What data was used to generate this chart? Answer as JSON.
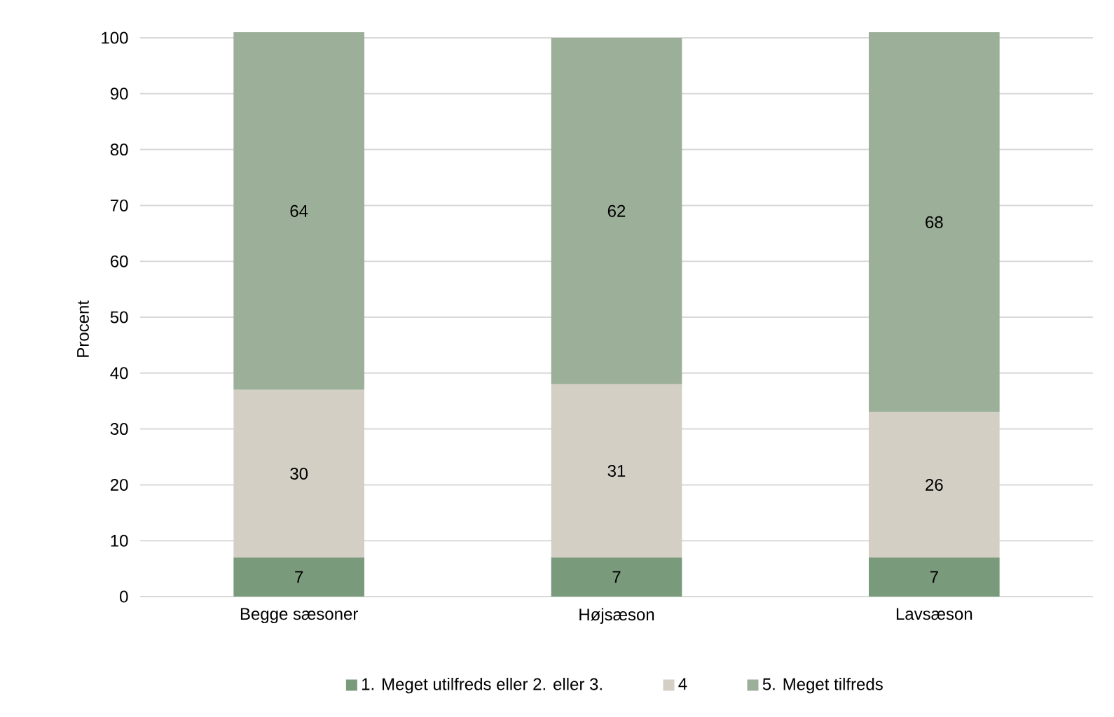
{
  "chart_data": {
    "type": "bar",
    "stacked": true,
    "ylabel": "Procent",
    "categories": [
      "Begge sæsoner",
      "Højsæson",
      "Lavsæson"
    ],
    "series": [
      {
        "name": "1. Meget utilfreds eller 2. eller 3.",
        "color": "#7a9a7c",
        "values": [
          7,
          7,
          7
        ]
      },
      {
        "name": "4",
        "color": "#d3cfc4",
        "values": [
          30,
          31,
          26
        ]
      },
      {
        "name": "5. Meget tilfreds",
        "color": "#9caf98",
        "values": [
          64,
          62,
          68
        ]
      }
    ],
    "ylim": [
      0,
      101
    ],
    "yticks": [
      0,
      10,
      20,
      30,
      40,
      50,
      60,
      70,
      80,
      90,
      100
    ],
    "grid": "y",
    "legend": "bottom",
    "data_labels": true
  }
}
